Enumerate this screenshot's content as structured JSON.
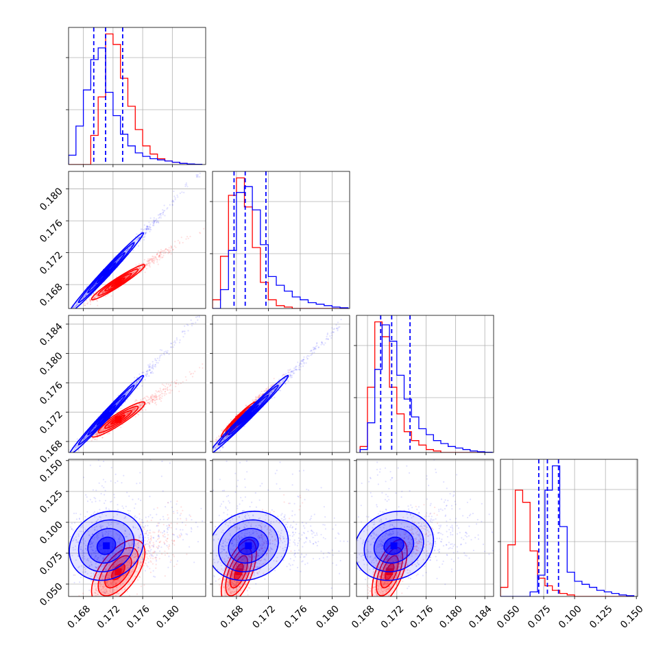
{
  "chart_data": {
    "type": "corner",
    "n_params": 4,
    "colors": {
      "series_a": "#0000ff",
      "series_b": "#ff0000"
    },
    "grid": true,
    "title": "",
    "axis_labels": [
      "",
      "",
      "",
      ""
    ],
    "params": [
      {
        "range": [
          0.166,
          0.1845
        ],
        "ticks": [
          0.168,
          0.172,
          0.176,
          0.18
        ],
        "tick_labels": [
          "0.168",
          "0.172",
          "0.176",
          "0.180"
        ]
      },
      {
        "range": [
          0.165,
          0.1822
        ],
        "ticks": [
          0.168,
          0.172,
          0.176,
          0.18
        ],
        "tick_labels": [
          "0.168",
          "0.172",
          "0.176",
          "0.180"
        ]
      },
      {
        "range": [
          0.1665,
          0.1852
        ],
        "ticks": [
          0.168,
          0.172,
          0.176,
          0.18,
          0.184
        ],
        "tick_labels": [
          "0.168",
          "0.172",
          "0.176",
          "0.180",
          "0.184"
        ]
      },
      {
        "range": [
          0.04,
          0.151
        ],
        "ticks": [
          0.05,
          0.075,
          0.1,
          0.125,
          0.15
        ],
        "tick_labels": [
          "0.050",
          "0.075",
          "0.100",
          "0.125",
          "0.150"
        ]
      }
    ],
    "quantiles_a": [
      [
        0.1694,
        0.171,
        0.1733
      ],
      [
        0.1677,
        0.1691,
        0.1717
      ],
      [
        0.1698,
        0.1713,
        0.1738
      ],
      [
        0.071,
        0.078,
        0.087
      ]
    ],
    "histograms": [
      {
        "bins": [
          0.166,
          0.167,
          0.168,
          0.169,
          0.17,
          0.171,
          0.172,
          0.173,
          0.174,
          0.175,
          0.176,
          0.177,
          0.178,
          0.179,
          0.18,
          0.181,
          0.182,
          0.183,
          0.184
        ],
        "series_a": [
          0.08,
          0.33,
          0.64,
          0.9,
          1.0,
          0.62,
          0.42,
          0.26,
          0.16,
          0.1,
          0.07,
          0.05,
          0.04,
          0.03,
          0.02,
          0.01,
          0.005,
          0.002
        ],
        "series_b": [
          0.0,
          0.0,
          0.0,
          0.25,
          0.58,
          1.12,
          1.03,
          0.74,
          0.5,
          0.3,
          0.16,
          0.09,
          0.05,
          0.03,
          0.02,
          0.01,
          0.005,
          0.0
        ]
      },
      {
        "bins": [
          0.165,
          0.166,
          0.167,
          0.168,
          0.169,
          0.17,
          0.171,
          0.172,
          0.173,
          0.174,
          0.175,
          0.176,
          0.177,
          0.178,
          0.179,
          0.18,
          0.181,
          0.182
        ],
        "series_a": [
          0.0,
          0.13,
          0.4,
          0.8,
          0.84,
          0.68,
          0.44,
          0.22,
          0.16,
          0.12,
          0.08,
          0.06,
          0.04,
          0.03,
          0.02,
          0.01,
          0.005
        ],
        "series_b": [
          0.06,
          0.36,
          0.78,
          0.9,
          0.7,
          0.42,
          0.18,
          0.06,
          0.02,
          0.01,
          0.0,
          0.0,
          0.0,
          0.0,
          0.0,
          0.0,
          0.0
        ]
      },
      {
        "bins": [
          0.167,
          0.168,
          0.169,
          0.17,
          0.171,
          0.172,
          0.173,
          0.174,
          0.175,
          0.176,
          0.177,
          0.178,
          0.179,
          0.18,
          0.181,
          0.182,
          0.183,
          0.184,
          0.185
        ],
        "series_a": [
          0.02,
          0.2,
          0.56,
          0.86,
          0.75,
          0.52,
          0.36,
          0.24,
          0.16,
          0.12,
          0.08,
          0.06,
          0.04,
          0.03,
          0.02,
          0.01,
          0.005,
          0.002
        ],
        "series_b": [
          0.04,
          0.44,
          0.88,
          0.78,
          0.44,
          0.26,
          0.14,
          0.08,
          0.05,
          0.02,
          0.01,
          0.0,
          0.0,
          0.0,
          0.0,
          0.0,
          0.0,
          0.0
        ]
      },
      {
        "bins": [
          0.04,
          0.046,
          0.052,
          0.058,
          0.064,
          0.07,
          0.076,
          0.082,
          0.088,
          0.094,
          0.1,
          0.106,
          0.112,
          0.118,
          0.124,
          0.13,
          0.136,
          0.142,
          0.148
        ],
        "series_a": [
          0.0,
          0.0,
          0.0,
          0.0,
          0.03,
          0.14,
          0.7,
          0.86,
          0.46,
          0.16,
          0.1,
          0.08,
          0.06,
          0.04,
          0.03,
          0.02,
          0.01,
          0.005
        ],
        "series_b": [
          0.06,
          0.34,
          0.7,
          0.62,
          0.3,
          0.12,
          0.07,
          0.04,
          0.02,
          0.01,
          0.0,
          0.0,
          0.0,
          0.0,
          0.0,
          0.0,
          0.0,
          0.0
        ]
      }
    ],
    "pair_stats": {
      "1-0": {
        "a": {
          "mean": [
            0.1711,
            0.1695
          ],
          "sd": [
            0.0025,
            0.0025
          ],
          "rho": 0.99
        },
        "b": {
          "mean": [
            0.1727,
            0.1683
          ],
          "sd": [
            0.0018,
            0.0011
          ],
          "rho": 0.96
        }
      },
      "2-0": {
        "a": {
          "mean": [
            0.1711,
            0.1716
          ],
          "sd": [
            0.0025,
            0.0027
          ],
          "rho": 0.99
        },
        "b": {
          "mean": [
            0.1727,
            0.171
          ],
          "sd": [
            0.0018,
            0.0012
          ],
          "rho": 0.93
        }
      },
      "2-1": {
        "a": {
          "mean": [
            0.1695,
            0.1716
          ],
          "sd": [
            0.0025,
            0.0027
          ],
          "rho": 0.99
        },
        "b": {
          "mean": [
            0.1683,
            0.171
          ],
          "sd": [
            0.0011,
            0.0012
          ],
          "rho": 0.96
        }
      },
      "3-0": {
        "a": {
          "mean": [
            0.1711,
            0.081
          ],
          "sd": [
            0.0025,
            0.014
          ],
          "rho": 0.15
        },
        "b": {
          "mean": [
            0.1727,
            0.06
          ],
          "sd": [
            0.0018,
            0.013
          ],
          "rho": 0.6
        }
      },
      "3-1": {
        "a": {
          "mean": [
            0.1695,
            0.081
          ],
          "sd": [
            0.0025,
            0.014
          ],
          "rho": 0.15
        },
        "b": {
          "mean": [
            0.1683,
            0.06
          ],
          "sd": [
            0.0011,
            0.013
          ],
          "rho": 0.6
        }
      },
      "3-2": {
        "a": {
          "mean": [
            0.1716,
            0.081
          ],
          "sd": [
            0.0027,
            0.014
          ],
          "rho": 0.15
        },
        "b": {
          "mean": [
            0.171,
            0.06
          ],
          "sd": [
            0.0012,
            0.013
          ],
          "rho": 0.6
        }
      }
    }
  }
}
